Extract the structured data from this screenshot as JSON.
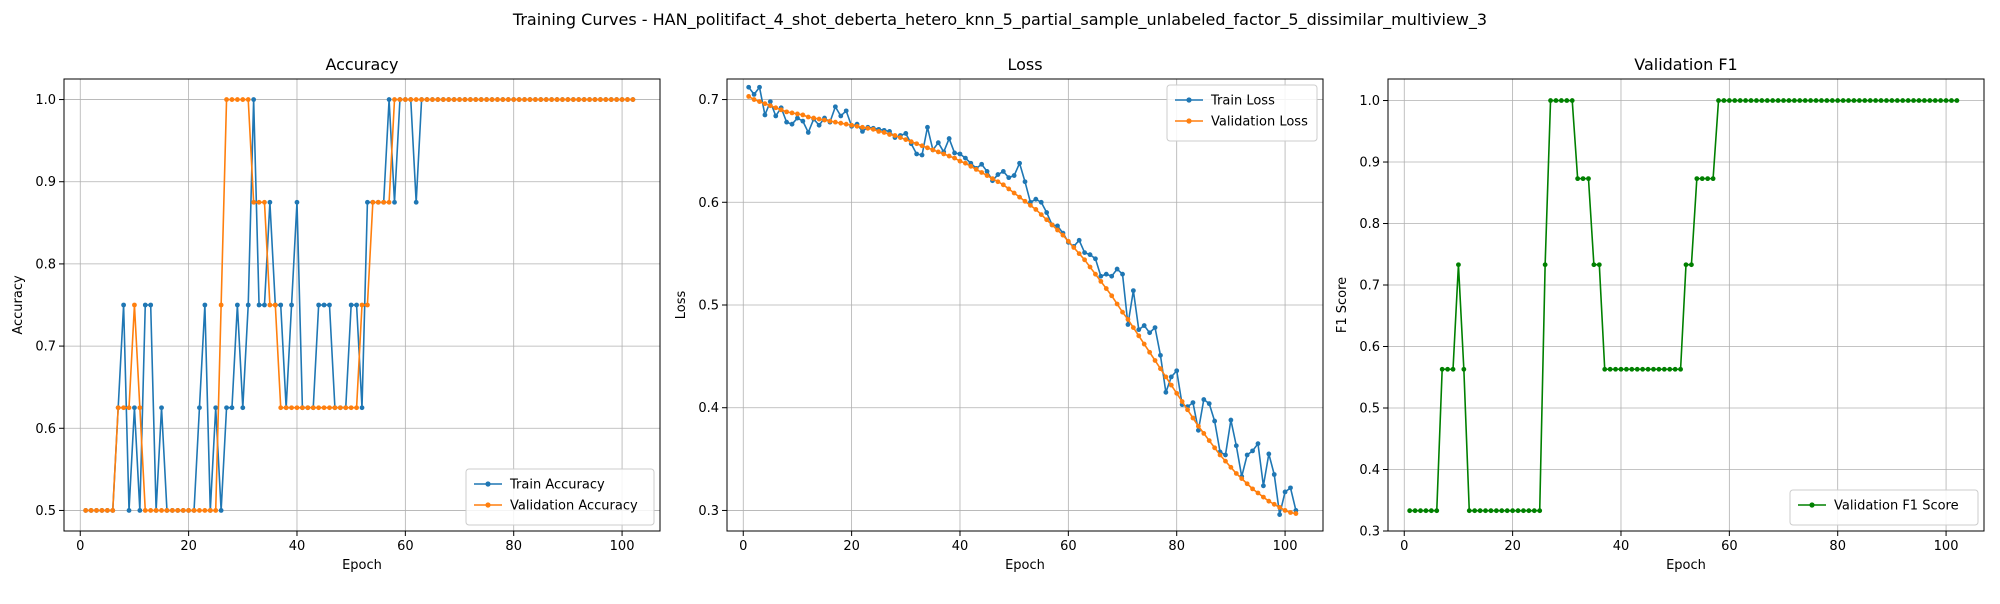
{
  "figure": {
    "suptitle": "Training Curves - HAN_politifact_4_shot_deberta_hetero_knn_5_partial_sample_unlabeled_factor_5_dissimilar_multiview_3"
  },
  "colors": {
    "blue": "#1f77b4",
    "orange": "#ff7f0e",
    "green": "#008000",
    "grid": "#b0b0b0"
  },
  "chart_data": [
    {
      "type": "line",
      "title": "Accuracy",
      "xlabel": "Epoch",
      "ylabel": "Accuracy",
      "xlim": [
        -3,
        107
      ],
      "ylim": [
        0.475,
        1.025
      ],
      "xticks": [
        0,
        20,
        40,
        60,
        80,
        100
      ],
      "yticks": [
        0.5,
        0.6,
        0.7,
        0.8,
        0.9,
        1.0
      ],
      "ytick_labels": [
        "0.5",
        "0.6",
        "0.7",
        "0.8",
        "0.9",
        "1.0"
      ],
      "grid": true,
      "legend_loc": "lower-right",
      "series": [
        {
          "name": "Train Accuracy",
          "color": "#1f77b4",
          "x_start": 1,
          "values": [
            0.5,
            0.5,
            0.5,
            0.5,
            0.5,
            0.5,
            0.625,
            0.75,
            0.5,
            0.625,
            0.5,
            0.75,
            0.75,
            0.5,
            0.625,
            0.5,
            0.5,
            0.5,
            0.5,
            0.5,
            0.5,
            0.625,
            0.75,
            0.5,
            0.625,
            0.5,
            0.625,
            0.625,
            0.75,
            0.625,
            0.75,
            1.0,
            0.75,
            0.75,
            0.875,
            0.75,
            0.75,
            0.625,
            0.75,
            0.875,
            0.625,
            0.625,
            0.625,
            0.75,
            0.75,
            0.75,
            0.625,
            0.625,
            0.625,
            0.75,
            0.75,
            0.625,
            0.875,
            0.875,
            0.875,
            0.875,
            1.0,
            0.875,
            1.0,
            1.0,
            1.0,
            0.875,
            1.0,
            1.0,
            1.0,
            1.0,
            1.0,
            1.0,
            1.0,
            1.0,
            1.0,
            1.0,
            1.0,
            1.0,
            1.0,
            1.0,
            1.0,
            1.0,
            1.0,
            1.0,
            1.0,
            1.0,
            1.0,
            1.0,
            1.0,
            1.0,
            1.0,
            1.0,
            1.0,
            1.0,
            1.0,
            1.0,
            1.0,
            1.0,
            1.0,
            1.0,
            1.0,
            1.0,
            1.0,
            1.0,
            1.0,
            1.0
          ]
        },
        {
          "name": "Validation Accuracy",
          "color": "#ff7f0e",
          "x_start": 1,
          "values": [
            0.5,
            0.5,
            0.5,
            0.5,
            0.5,
            0.5,
            0.625,
            0.625,
            0.625,
            0.75,
            0.625,
            0.5,
            0.5,
            0.5,
            0.5,
            0.5,
            0.5,
            0.5,
            0.5,
            0.5,
            0.5,
            0.5,
            0.5,
            0.5,
            0.5,
            0.75,
            1.0,
            1.0,
            1.0,
            1.0,
            1.0,
            0.875,
            0.875,
            0.875,
            0.75,
            0.75,
            0.625,
            0.625,
            0.625,
            0.625,
            0.625,
            0.625,
            0.625,
            0.625,
            0.625,
            0.625,
            0.625,
            0.625,
            0.625,
            0.625,
            0.625,
            0.75,
            0.75,
            0.875,
            0.875,
            0.875,
            0.875,
            1.0,
            1.0,
            1.0,
            1.0,
            1.0,
            1.0,
            1.0,
            1.0,
            1.0,
            1.0,
            1.0,
            1.0,
            1.0,
            1.0,
            1.0,
            1.0,
            1.0,
            1.0,
            1.0,
            1.0,
            1.0,
            1.0,
            1.0,
            1.0,
            1.0,
            1.0,
            1.0,
            1.0,
            1.0,
            1.0,
            1.0,
            1.0,
            1.0,
            1.0,
            1.0,
            1.0,
            1.0,
            1.0,
            1.0,
            1.0,
            1.0,
            1.0,
            1.0,
            1.0,
            1.0
          ]
        }
      ]
    },
    {
      "type": "line",
      "title": "Loss",
      "xlabel": "Epoch",
      "ylabel": "Loss",
      "xlim": [
        -3,
        107
      ],
      "ylim": [
        0.28,
        0.72
      ],
      "xticks": [
        0,
        20,
        40,
        60,
        80,
        100
      ],
      "yticks": [
        0.3,
        0.4,
        0.5,
        0.6,
        0.7
      ],
      "ytick_labels": [
        "0.3",
        "0.4",
        "0.5",
        "0.6",
        "0.7"
      ],
      "grid": true,
      "legend_loc": "upper-right",
      "series": [
        {
          "name": "Train Loss",
          "color": "#1f77b4",
          "x_start": 1,
          "values": [
            0.712,
            0.705,
            0.712,
            0.685,
            0.698,
            0.684,
            0.692,
            0.678,
            0.676,
            0.682,
            0.679,
            0.668,
            0.681,
            0.675,
            0.682,
            0.678,
            0.693,
            0.684,
            0.689,
            0.674,
            0.676,
            0.669,
            0.673,
            0.672,
            0.671,
            0.67,
            0.669,
            0.663,
            0.665,
            0.667,
            0.657,
            0.647,
            0.646,
            0.673,
            0.651,
            0.658,
            0.649,
            0.662,
            0.648,
            0.647,
            0.643,
            0.638,
            0.633,
            0.637,
            0.63,
            0.621,
            0.627,
            0.63,
            0.624,
            0.626,
            0.638,
            0.62,
            0.6,
            0.603,
            0.6,
            0.59,
            0.578,
            0.577,
            0.57,
            0.561,
            0.557,
            0.563,
            0.551,
            0.549,
            0.545,
            0.528,
            0.53,
            0.528,
            0.535,
            0.53,
            0.481,
            0.514,
            0.476,
            0.48,
            0.473,
            0.478,
            0.451,
            0.415,
            0.43,
            0.436,
            0.403,
            0.401,
            0.405,
            0.378,
            0.408,
            0.404,
            0.387,
            0.357,
            0.354,
            0.388,
            0.363,
            0.333,
            0.354,
            0.358,
            0.365,
            0.324,
            0.355,
            0.335,
            0.296,
            0.318,
            0.322,
            0.3
          ]
        },
        {
          "name": "Validation Loss",
          "color": "#ff7f0e",
          "x_start": 1,
          "values": [
            0.703,
            0.7,
            0.698,
            0.696,
            0.694,
            0.692,
            0.69,
            0.688,
            0.687,
            0.686,
            0.685,
            0.683,
            0.682,
            0.681,
            0.68,
            0.679,
            0.678,
            0.677,
            0.676,
            0.675,
            0.674,
            0.673,
            0.672,
            0.671,
            0.669,
            0.668,
            0.666,
            0.665,
            0.663,
            0.661,
            0.659,
            0.657,
            0.655,
            0.653,
            0.651,
            0.649,
            0.647,
            0.645,
            0.643,
            0.64,
            0.638,
            0.635,
            0.632,
            0.629,
            0.626,
            0.623,
            0.62,
            0.617,
            0.613,
            0.609,
            0.605,
            0.601,
            0.597,
            0.593,
            0.588,
            0.583,
            0.578,
            0.573,
            0.568,
            0.562,
            0.556,
            0.55,
            0.544,
            0.537,
            0.53,
            0.523,
            0.516,
            0.509,
            0.501,
            0.493,
            0.486,
            0.478,
            0.47,
            0.462,
            0.454,
            0.446,
            0.438,
            0.43,
            0.422,
            0.414,
            0.406,
            0.398,
            0.39,
            0.382,
            0.375,
            0.368,
            0.361,
            0.354,
            0.348,
            0.342,
            0.336,
            0.331,
            0.326,
            0.321,
            0.317,
            0.313,
            0.309,
            0.306,
            0.303,
            0.3,
            0.298,
            0.297
          ]
        }
      ]
    },
    {
      "type": "line",
      "title": "Validation F1",
      "xlabel": "Epoch",
      "ylabel": "F1 Score",
      "xlim": [
        -3,
        107
      ],
      "ylim": [
        0.3,
        1.035
      ],
      "xticks": [
        0,
        20,
        40,
        60,
        80,
        100
      ],
      "yticks": [
        0.3,
        0.4,
        0.5,
        0.6,
        0.7,
        0.8,
        0.9,
        1.0
      ],
      "ytick_labels": [
        "0.3",
        "0.4",
        "0.5",
        "0.6",
        "0.7",
        "0.8",
        "0.9",
        "1.0"
      ],
      "grid": true,
      "legend_loc": "lower-right",
      "series": [
        {
          "name": "Validation F1 Score",
          "color": "#008000",
          "x_start": 1,
          "values": [
            0.333,
            0.333,
            0.333,
            0.333,
            0.333,
            0.333,
            0.563,
            0.563,
            0.563,
            0.733,
            0.563,
            0.333,
            0.333,
            0.333,
            0.333,
            0.333,
            0.333,
            0.333,
            0.333,
            0.333,
            0.333,
            0.333,
            0.333,
            0.333,
            0.333,
            0.733,
            1.0,
            1.0,
            1.0,
            1.0,
            1.0,
            0.873,
            0.873,
            0.873,
            0.733,
            0.733,
            0.563,
            0.563,
            0.563,
            0.563,
            0.563,
            0.563,
            0.563,
            0.563,
            0.563,
            0.563,
            0.563,
            0.563,
            0.563,
            0.563,
            0.563,
            0.733,
            0.733,
            0.873,
            0.873,
            0.873,
            0.873,
            1.0,
            1.0,
            1.0,
            1.0,
            1.0,
            1.0,
            1.0,
            1.0,
            1.0,
            1.0,
            1.0,
            1.0,
            1.0,
            1.0,
            1.0,
            1.0,
            1.0,
            1.0,
            1.0,
            1.0,
            1.0,
            1.0,
            1.0,
            1.0,
            1.0,
            1.0,
            1.0,
            1.0,
            1.0,
            1.0,
            1.0,
            1.0,
            1.0,
            1.0,
            1.0,
            1.0,
            1.0,
            1.0,
            1.0,
            1.0,
            1.0,
            1.0,
            1.0,
            1.0,
            1.0
          ]
        }
      ]
    }
  ]
}
